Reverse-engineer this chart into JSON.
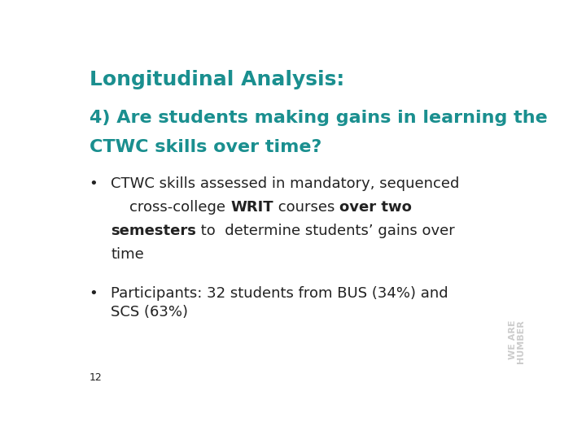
{
  "background_color": "#ffffff",
  "title": "Longitudinal Analysis:",
  "title_color": "#1a8f8f",
  "title_fontsize": 18,
  "subtitle_line1": "4) Are students making gains in learning the",
  "subtitle_line2": "CTWC skills over time?",
  "subtitle_color": "#1a8f8f",
  "subtitle_fontsize": 16,
  "bullet_color": "#222222",
  "bullet_fontsize": 13,
  "bullet1_line1": "CTWC skills assessed in mandatory, sequenced",
  "bullet1_line2_pre": "    cross-college ",
  "bullet1_line2_bold1": "WRIT",
  "bullet1_line2_post": " courses ",
  "bullet1_line2_bold2": "over two",
  "bullet1_line3_bold": "semesters",
  "bullet1_line3_post": " to  determine students’ gains over",
  "bullet1_line4": "time",
  "bullet2_text": "Participants: 32 students from BUS (34%) and\nSCS (63%)",
  "footnote": "12",
  "footnote_fontsize": 9,
  "watermark_color": "#cccccc",
  "watermark_fontsize": 8
}
